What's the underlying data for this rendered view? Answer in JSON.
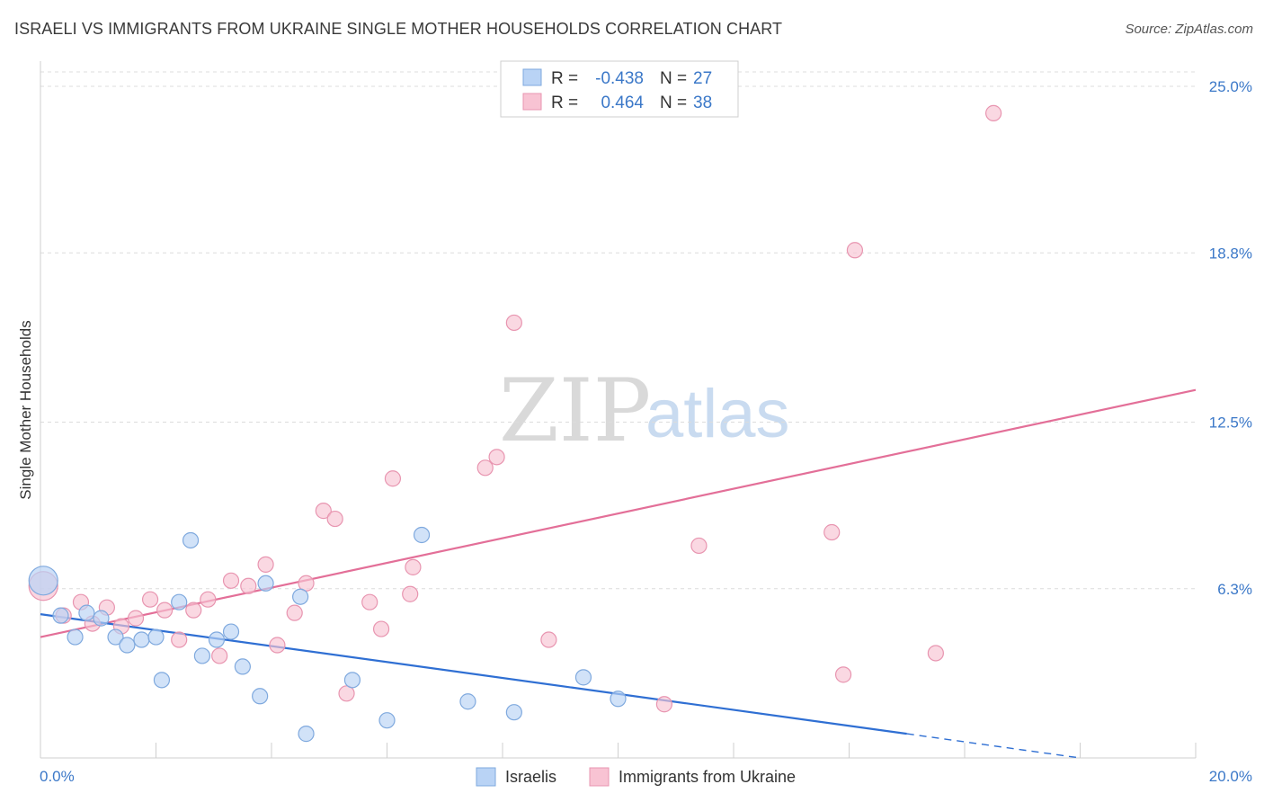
{
  "header": {
    "title": "ISRAELI VS IMMIGRANTS FROM UKRAINE SINGLE MOTHER HOUSEHOLDS CORRELATION CHART",
    "source": "Source: ZipAtlas.com"
  },
  "watermark": {
    "zip": "ZIP",
    "atlas": "atlas"
  },
  "legend": {
    "israelis": {
      "r_label": "R =",
      "r_value": "-0.438",
      "n_label": "N =",
      "n_value": "27"
    },
    "ukraine": {
      "r_label": "R =",
      "r_value": "0.464",
      "n_label": "N =",
      "n_value": "38"
    }
  },
  "bottom_legend": {
    "israelis": "Israelis",
    "ukraine": "Immigrants from Ukraine"
  },
  "colors": {
    "israelis_fill": "#b9d3f5",
    "israelis_stroke": "#7fa9de",
    "israelis_line": "#2f6fd3",
    "ukraine_fill": "#f8c3d3",
    "ukraine_stroke": "#e895b0",
    "ukraine_line": "#e36f98",
    "grid": "#dcdcdc",
    "axis_label": "#3b78c8"
  },
  "chart_data": {
    "type": "scatter",
    "title": "ISRAELI VS IMMIGRANTS FROM UKRAINE SINGLE MOTHER HOUSEHOLDS CORRELATION CHART",
    "xlabel": "",
    "ylabel": "Single Mother Households",
    "xlim": [
      0,
      20
    ],
    "ylim": [
      0,
      25
    ],
    "x_tick_labels": [
      "0.0%",
      "20.0%"
    ],
    "y_ticks": [
      6.3,
      12.5,
      18.8,
      25.0
    ],
    "y_tick_labels": [
      "6.3%",
      "12.5%",
      "18.8%",
      "25.0%"
    ],
    "grid": true,
    "legend_position": "top-center",
    "series": [
      {
        "name": "Israelis",
        "r": -0.438,
        "n": 27,
        "points": [
          [
            0.05,
            6.6
          ],
          [
            0.35,
            5.3
          ],
          [
            0.6,
            4.5
          ],
          [
            0.8,
            5.4
          ],
          [
            1.05,
            5.2
          ],
          [
            1.3,
            4.5
          ],
          [
            1.5,
            4.2
          ],
          [
            1.75,
            4.4
          ],
          [
            2.0,
            4.5
          ],
          [
            2.1,
            2.9
          ],
          [
            2.4,
            5.8
          ],
          [
            2.6,
            8.1
          ],
          [
            2.8,
            3.8
          ],
          [
            3.05,
            4.4
          ],
          [
            3.3,
            4.7
          ],
          [
            3.5,
            3.4
          ],
          [
            3.8,
            2.3
          ],
          [
            3.9,
            6.5
          ],
          [
            4.5,
            6.0
          ],
          [
            4.6,
            0.9
          ],
          [
            5.4,
            2.9
          ],
          [
            6.0,
            1.4
          ],
          [
            6.6,
            8.3
          ],
          [
            7.4,
            2.1
          ],
          [
            8.2,
            1.7
          ],
          [
            9.4,
            3.0
          ],
          [
            10.0,
            2.2
          ]
        ],
        "trend": {
          "x": [
            0,
            15.0
          ],
          "y": [
            5.35,
            0.9
          ],
          "dashed_to": [
            18.0,
            0.0
          ]
        }
      },
      {
        "name": "Immigrants from Ukraine",
        "r": 0.464,
        "n": 38,
        "points": [
          [
            0.05,
            6.4
          ],
          [
            0.4,
            5.3
          ],
          [
            0.7,
            5.8
          ],
          [
            0.9,
            5.0
          ],
          [
            1.15,
            5.6
          ],
          [
            1.4,
            4.9
          ],
          [
            1.65,
            5.2
          ],
          [
            1.9,
            5.9
          ],
          [
            2.15,
            5.5
          ],
          [
            2.4,
            4.4
          ],
          [
            2.65,
            5.5
          ],
          [
            2.9,
            5.9
          ],
          [
            3.1,
            3.8
          ],
          [
            3.3,
            6.6
          ],
          [
            3.6,
            6.4
          ],
          [
            3.9,
            7.2
          ],
          [
            4.1,
            4.2
          ],
          [
            4.4,
            5.4
          ],
          [
            4.6,
            6.5
          ],
          [
            4.9,
            9.2
          ],
          [
            5.1,
            8.9
          ],
          [
            5.3,
            2.4
          ],
          [
            5.7,
            5.8
          ],
          [
            5.9,
            4.8
          ],
          [
            6.1,
            10.4
          ],
          [
            6.4,
            6.1
          ],
          [
            6.45,
            7.1
          ],
          [
            7.7,
            10.8
          ],
          [
            7.9,
            11.2
          ],
          [
            8.2,
            16.2
          ],
          [
            8.8,
            4.4
          ],
          [
            10.8,
            2.0
          ],
          [
            11.4,
            7.9
          ],
          [
            13.7,
            8.4
          ],
          [
            13.9,
            3.1
          ],
          [
            14.1,
            18.9
          ],
          [
            15.5,
            3.9
          ],
          [
            16.5,
            24.0
          ]
        ],
        "trend": {
          "x": [
            0,
            20.0
          ],
          "y": [
            4.5,
            13.7
          ]
        }
      }
    ]
  }
}
